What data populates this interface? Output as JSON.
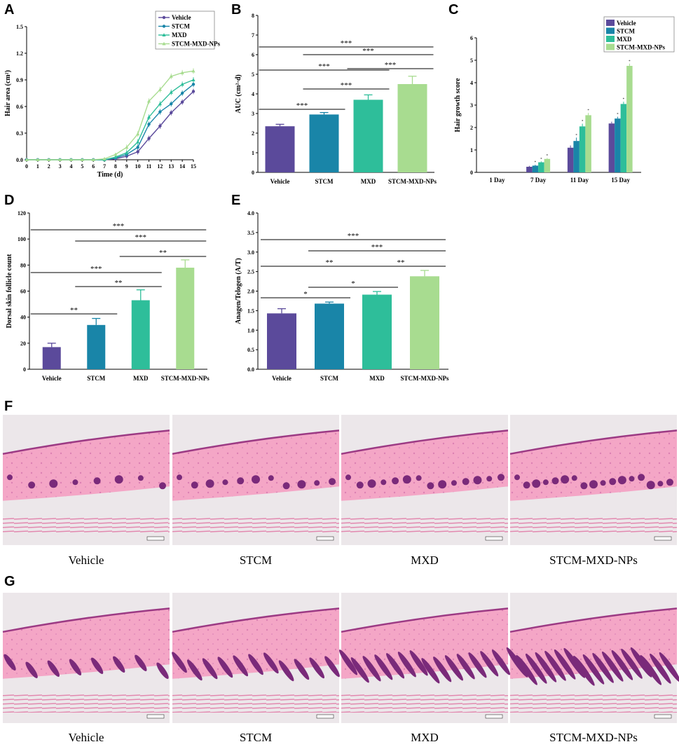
{
  "panels": {
    "A": "A",
    "B": "B",
    "C": "C",
    "D": "D",
    "E": "E",
    "F": "F",
    "G": "G"
  },
  "colors": {
    "Vehicle": "#5b4a9b",
    "STCM": "#1985a8",
    "MXD": "#2ebe9a",
    "STCM-MXD-NPs": "#a8dc90"
  },
  "chart_data": [
    {
      "id": "A",
      "type": "line",
      "xlabel": "Time (d)",
      "ylabel": "Hair area (cm²)",
      "x": [
        0,
        1,
        2,
        3,
        4,
        5,
        6,
        7,
        8,
        9,
        10,
        11,
        12,
        13,
        14,
        15
      ],
      "xlim": [
        0,
        15
      ],
      "ylim": [
        0,
        1.5
      ],
      "yticks": [
        "0.0",
        "0.3",
        "0.6",
        "0.9",
        "1.2",
        "1.5"
      ],
      "series": [
        {
          "name": "Vehicle",
          "values": [
            0,
            0,
            0,
            0,
            0,
            0,
            0,
            0,
            0.01,
            0.04,
            0.09,
            0.24,
            0.38,
            0.53,
            0.65,
            0.77
          ]
        },
        {
          "name": "STCM",
          "values": [
            0,
            0,
            0,
            0,
            0,
            0,
            0,
            0,
            0.02,
            0.06,
            0.14,
            0.4,
            0.54,
            0.63,
            0.75,
            0.85
          ]
        },
        {
          "name": "MXD",
          "values": [
            0,
            0,
            0,
            0,
            0,
            0,
            0,
            0,
            0.03,
            0.08,
            0.2,
            0.48,
            0.63,
            0.76,
            0.85,
            0.9
          ]
        },
        {
          "name": "STCM-MXD-NPs",
          "values": [
            0,
            0,
            0,
            0,
            0,
            0,
            0,
            0.01,
            0.06,
            0.14,
            0.29,
            0.66,
            0.79,
            0.94,
            0.98,
            1.0
          ]
        }
      ]
    },
    {
      "id": "B",
      "type": "bar",
      "ylabel": "AUC (cm²·d)",
      "ylim": [
        0,
        8
      ],
      "yticks": [
        "0",
        "1",
        "2",
        "3",
        "4",
        "5",
        "6",
        "7",
        "8"
      ],
      "categories": [
        "Vehicle",
        "STCM",
        "MXD",
        "STCM-MXD-NPs"
      ],
      "values": [
        2.35,
        2.95,
        3.7,
        4.5
      ],
      "errors": [
        0.1,
        0.1,
        0.25,
        0.4
      ],
      "significance": [
        {
          "label": "***",
          "from": 0,
          "to": 1
        },
        {
          "label": "***",
          "from": 1,
          "to": 2
        },
        {
          "label": "***",
          "from": 2,
          "to": 3
        },
        {
          "label": "***",
          "from": 0,
          "to": 2
        },
        {
          "label": "***",
          "from": 1,
          "to": 3
        },
        {
          "label": "***",
          "from": 0,
          "to": 3
        }
      ]
    },
    {
      "id": "C",
      "type": "bar",
      "ylabel": "Hair growth score",
      "ylim": [
        0,
        6
      ],
      "yticks": [
        "0",
        "1",
        "2",
        "3",
        "4",
        "5",
        "6"
      ],
      "categories": [
        "1 Day",
        "7 Day",
        "11 Day",
        "15 Day"
      ],
      "series": [
        {
          "name": "Vehicle",
          "values": [
            0,
            0.25,
            1.1,
            2.18
          ],
          "errors": [
            0,
            0.04,
            0.1,
            0.08
          ]
        },
        {
          "name": "STCM",
          "values": [
            0,
            0.3,
            1.4,
            2.4
          ],
          "errors": [
            0,
            0.04,
            0.15,
            0.08
          ]
        },
        {
          "name": "MXD",
          "values": [
            0,
            0.45,
            2.05,
            3.05
          ],
          "errors": [
            0,
            0.04,
            0.12,
            0.1
          ]
        },
        {
          "name": "STCM-MXD-NPs",
          "values": [
            0,
            0.6,
            2.55,
            4.75
          ],
          "errors": [
            0,
            0.04,
            0.1,
            0.1
          ]
        }
      ]
    },
    {
      "id": "D",
      "type": "bar",
      "ylabel": "Dorsal skin follicle count",
      "ylim": [
        0,
        120
      ],
      "yticks": [
        "0",
        "20",
        "40",
        "60",
        "80",
        "100",
        "120"
      ],
      "categories": [
        "Vehicle",
        "STCM",
        "MXD",
        "STCM-MXD-NPs"
      ],
      "values": [
        17,
        34,
        53,
        78
      ],
      "errors": [
        3,
        5,
        8,
        6
      ],
      "significance": [
        {
          "label": "**",
          "from": 0,
          "to": 1
        },
        {
          "label": "**",
          "from": 1,
          "to": 2
        },
        {
          "label": "**",
          "from": 2,
          "to": 3
        },
        {
          "label": "***",
          "from": 0,
          "to": 2
        },
        {
          "label": "***",
          "from": 1,
          "to": 3
        },
        {
          "label": "***",
          "from": 0,
          "to": 3
        }
      ]
    },
    {
      "id": "E",
      "type": "bar",
      "ylabel": "Anagen/Telogen (A/T)",
      "ylim": [
        0,
        4
      ],
      "yticks": [
        "0.0",
        "0.5",
        "1.0",
        "1.5",
        "2.0",
        "2.5",
        "3.0",
        "3.5",
        "4.0"
      ],
      "categories": [
        "Vehicle",
        "STCM",
        "MXD",
        "STCM-MXD-NPs"
      ],
      "values": [
        1.43,
        1.68,
        1.91,
        2.38
      ],
      "errors": [
        0.12,
        0.04,
        0.08,
        0.15
      ],
      "significance": [
        {
          "label": "*",
          "from": 0,
          "to": 1
        },
        {
          "label": "*",
          "from": 1,
          "to": 2
        },
        {
          "label": "**",
          "from": 2,
          "to": 3
        },
        {
          "label": "**",
          "from": 0,
          "to": 2
        },
        {
          "label": "***",
          "from": 1,
          "to": 3
        },
        {
          "label": "***",
          "from": 0,
          "to": 3
        }
      ]
    }
  ],
  "micrographs": {
    "F": {
      "captions": [
        "Vehicle",
        "STCM",
        "MXD",
        "STCM-MXD-NPs"
      ]
    },
    "G": {
      "captions": [
        "Vehicle",
        "STCM",
        "MXD",
        "STCM-MXD-NPs"
      ]
    }
  }
}
